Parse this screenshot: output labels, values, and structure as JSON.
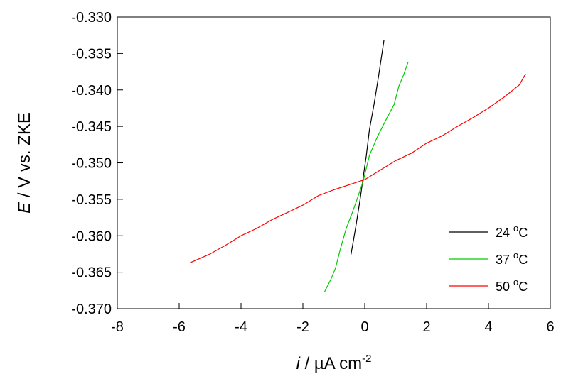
{
  "chart_data": {
    "type": "line",
    "title": "",
    "xlabel_italic": "i",
    "xlabel_rest": " / µA cm",
    "xlabel_sup": "-2",
    "ylabel_italic": "E",
    "ylabel_rest": " / V vs. ZKE",
    "xlim": [
      -8,
      6
    ],
    "ylim": [
      -0.37,
      -0.33
    ],
    "xticks": [
      -8,
      -6,
      -4,
      -2,
      0,
      2,
      4,
      6
    ],
    "yticks": [
      -0.33,
      -0.335,
      -0.34,
      -0.345,
      -0.35,
      -0.355,
      -0.36,
      -0.365,
      -0.37
    ],
    "xtick_labels": [
      "-8",
      "-6",
      "-4",
      "-2",
      "0",
      "2",
      "4",
      "6"
    ],
    "ytick_labels": [
      "-0.330",
      "-0.335",
      "-0.340",
      "-0.345",
      "-0.350",
      "-0.355",
      "-0.360",
      "-0.365",
      "-0.370"
    ],
    "grid": false,
    "legend_position": "bottom-right",
    "series": [
      {
        "name": "24 °C",
        "label_value": "24 ",
        "label_sup": "o",
        "label_unit": "C",
        "color": "#000000",
        "x": [
          -0.45,
          -0.3,
          -0.15,
          -0.05,
          0.05,
          0.15,
          0.3,
          0.45,
          0.62
        ],
        "y": [
          -0.3627,
          -0.359,
          -0.355,
          -0.352,
          -0.349,
          -0.3455,
          -0.342,
          -0.338,
          -0.3332
        ]
      },
      {
        "name": "37 °C",
        "label_value": "37 ",
        "label_sup": "o",
        "label_unit": "C",
        "color": "#00cc00",
        "x": [
          -1.3,
          -1.1,
          -0.95,
          -0.8,
          -0.6,
          -0.4,
          -0.25,
          -0.05,
          0.15,
          0.4,
          0.7,
          0.95,
          1.1,
          1.25,
          1.4
        ],
        "y": [
          -0.3677,
          -0.366,
          -0.3645,
          -0.362,
          -0.359,
          -0.3568,
          -0.355,
          -0.3525,
          -0.349,
          -0.3465,
          -0.344,
          -0.342,
          -0.3395,
          -0.338,
          -0.3362
        ]
      },
      {
        "name": "50 °C",
        "label_value": "50 ",
        "label_sup": "o",
        "label_unit": "C",
        "color": "#ff0000",
        "x": [
          -5.65,
          -5.0,
          -4.5,
          -4.0,
          -3.5,
          -3.0,
          -2.5,
          -2.0,
          -1.5,
          -1.0,
          -0.5,
          0.0,
          0.5,
          1.0,
          1.5,
          2.0,
          2.5,
          3.0,
          3.5,
          4.0,
          4.5,
          5.0,
          5.2
        ],
        "y": [
          -0.3637,
          -0.3625,
          -0.3613,
          -0.36,
          -0.359,
          -0.3578,
          -0.3568,
          -0.3558,
          -0.3545,
          -0.3537,
          -0.353,
          -0.3523,
          -0.351,
          -0.3497,
          -0.3487,
          -0.3473,
          -0.3463,
          -0.345,
          -0.3438,
          -0.3425,
          -0.341,
          -0.3393,
          -0.3378
        ]
      }
    ]
  }
}
